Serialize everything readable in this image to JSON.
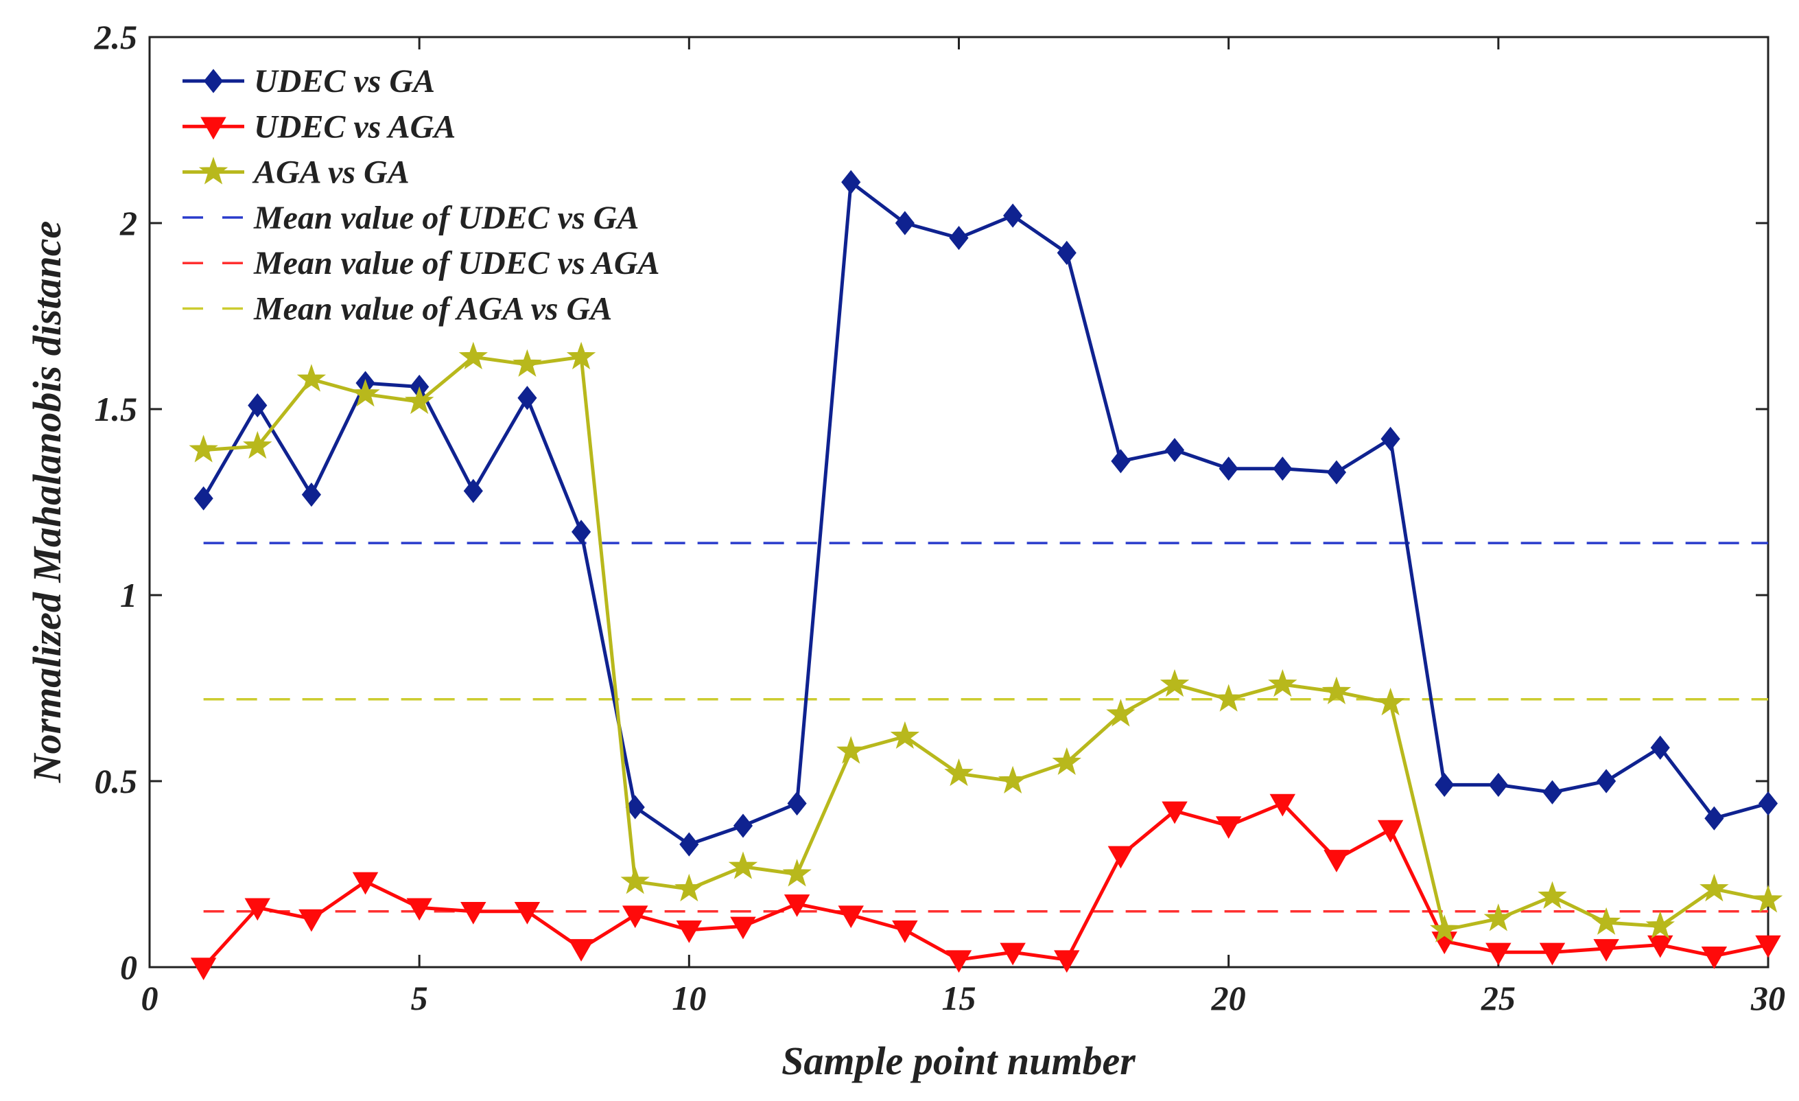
{
  "chart_data": {
    "type": "line",
    "title": "",
    "xlabel": "Sample point number",
    "ylabel": "Normalized Mahalanobis distance",
    "xlim": [
      0,
      30
    ],
    "ylim": [
      0,
      2.5
    ],
    "xticks": [
      0,
      5,
      10,
      15,
      20,
      25,
      30
    ],
    "yticks": [
      0,
      0.5,
      1,
      1.5,
      2,
      2.5
    ],
    "xtick_labels": [
      "0",
      "5",
      "10",
      "15",
      "20",
      "25",
      "30"
    ],
    "ytick_labels": [
      "0",
      "0.5",
      "1",
      "1.5",
      "2",
      "2.5"
    ],
    "grid": false,
    "legend_position": "top-left",
    "x": [
      1,
      2,
      3,
      4,
      5,
      6,
      7,
      8,
      9,
      10,
      11,
      12,
      13,
      14,
      15,
      16,
      17,
      18,
      19,
      20,
      21,
      22,
      23,
      24,
      25,
      26,
      27,
      28,
      29,
      30
    ],
    "series": [
      {
        "name": "UDEC vs GA",
        "color": "#0f2290",
        "marker": "diamond",
        "values": [
          1.26,
          1.51,
          1.27,
          1.57,
          1.56,
          1.28,
          1.53,
          1.17,
          0.43,
          0.33,
          0.38,
          0.44,
          2.11,
          2.0,
          1.96,
          2.02,
          1.92,
          1.36,
          1.39,
          1.34,
          1.34,
          1.33,
          1.42,
          0.49,
          0.49,
          0.47,
          0.5,
          0.59,
          0.4,
          0.44
        ]
      },
      {
        "name": "UDEC vs AGA",
        "color": "#ff0a0a",
        "marker": "triangle-down",
        "values": [
          0.0,
          0.16,
          0.13,
          0.23,
          0.16,
          0.15,
          0.15,
          0.05,
          0.14,
          0.1,
          0.11,
          0.17,
          0.14,
          0.1,
          0.02,
          0.04,
          0.02,
          0.3,
          0.42,
          0.38,
          0.44,
          0.29,
          0.37,
          0.07,
          0.04,
          0.04,
          0.05,
          0.06,
          0.03,
          0.06
        ]
      },
      {
        "name": "AGA vs GA",
        "color": "#b8b81c",
        "marker": "star",
        "values": [
          1.39,
          1.4,
          1.58,
          1.54,
          1.52,
          1.64,
          1.62,
          1.64,
          0.23,
          0.21,
          0.27,
          0.25,
          0.58,
          0.62,
          0.52,
          0.5,
          0.55,
          0.68,
          0.76,
          0.72,
          0.76,
          0.74,
          0.71,
          0.1,
          0.13,
          0.19,
          0.12,
          0.11,
          0.21,
          0.18
        ]
      }
    ],
    "mean_lines": [
      {
        "name": "Mean value of UDEC vs GA",
        "color": "#2a3ccc",
        "value": 1.14
      },
      {
        "name": "Mean value of UDEC vs AGA",
        "color": "#ff3030",
        "value": 0.15
      },
      {
        "name": "Mean value of AGA vs GA",
        "color": "#cccc30",
        "value": 0.72
      }
    ]
  }
}
